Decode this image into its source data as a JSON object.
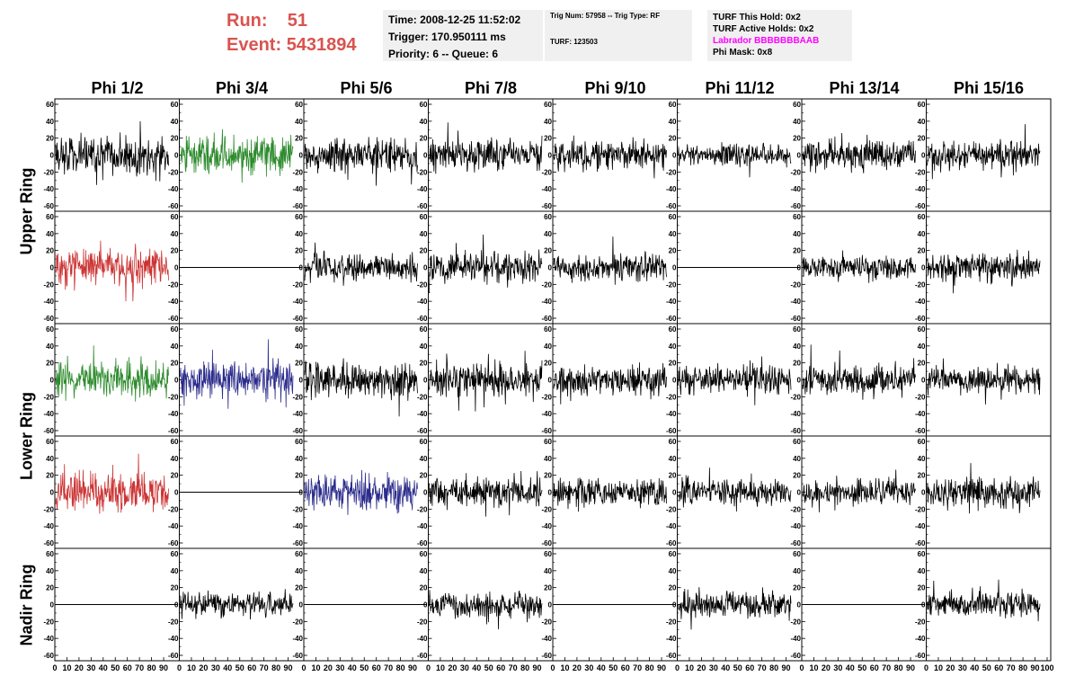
{
  "header": {
    "run_label": "Run:",
    "run_value": "51",
    "event_label": "Event:",
    "event_value": "5431894"
  },
  "info_box_1": {
    "time": "Time: 2008-12-25 11:52:02",
    "trigger": "Trigger: 170.950111 ms",
    "priority": "Priority: 6 -- Queue: 6"
  },
  "info_box_2": {
    "trig": "Trig Num: 57958 -- Trig Type: RF",
    "turf": "TURF: 123503"
  },
  "info_box_3": {
    "this_hold": "TURF This Hold: 0x2",
    "active_holds": "TURF Active Holds: 0x2",
    "labrador": "Labrador BBBBBBBAAB",
    "phi_mask": "Phi Mask: 0x8"
  },
  "colors": {
    "red": "#cc3333",
    "green": "#2e8b2e",
    "blue": "#2b2b8c",
    "black": "#000000"
  },
  "chart_data": {
    "type": "line",
    "columns": [
      "Phi 1/2",
      "Phi 3/4",
      "Phi 5/6",
      "Phi 7/8",
      "Phi 9/10",
      "Phi 11/12",
      "Phi 13/14",
      "Phi 15/16"
    ],
    "ring_labels": [
      {
        "label": "Upper Ring",
        "rows": [
          0,
          1
        ]
      },
      {
        "label": "Lower Ring",
        "rows": [
          2,
          3
        ]
      },
      {
        "label": "Nadir Ring",
        "rows": [
          4
        ]
      }
    ],
    "ylim": [
      -60,
      60
    ],
    "yticks": [
      "60",
      "40",
      "20",
      "0",
      "-20",
      "-40",
      "-60"
    ],
    "xlim": [
      0,
      100
    ],
    "xticks": [
      "0",
      "10",
      "20",
      "30",
      "40",
      "50",
      "60",
      "70",
      "80",
      "90",
      "100"
    ],
    "panels": [
      [
        {
          "color": "black",
          "flat": false,
          "amp": 22
        },
        {
          "color": "green",
          "flat": false,
          "amp": 24
        },
        {
          "color": "black",
          "flat": false,
          "amp": 20
        },
        {
          "color": "black",
          "flat": false,
          "amp": 18
        },
        {
          "color": "black",
          "flat": false,
          "amp": 18
        },
        {
          "color": "black",
          "flat": false,
          "amp": 14
        },
        {
          "color": "black",
          "flat": false,
          "amp": 17
        },
        {
          "color": "black",
          "flat": false,
          "amp": 17
        }
      ],
      [
        {
          "color": "red",
          "flat": false,
          "amp": 24
        },
        {
          "color": "black",
          "flat": true,
          "amp": 0
        },
        {
          "color": "black",
          "flat": false,
          "amp": 17
        },
        {
          "color": "black",
          "flat": false,
          "amp": 19
        },
        {
          "color": "black",
          "flat": false,
          "amp": 17
        },
        {
          "color": "black",
          "flat": true,
          "amp": 0
        },
        {
          "color": "black",
          "flat": false,
          "amp": 15
        },
        {
          "color": "black",
          "flat": false,
          "amp": 18
        }
      ],
      [
        {
          "color": "green",
          "flat": false,
          "amp": 22
        },
        {
          "color": "blue",
          "flat": false,
          "amp": 22
        },
        {
          "color": "black",
          "flat": false,
          "amp": 22
        },
        {
          "color": "black",
          "flat": false,
          "amp": 20
        },
        {
          "color": "black",
          "flat": false,
          "amp": 18
        },
        {
          "color": "black",
          "flat": false,
          "amp": 16
        },
        {
          "color": "black",
          "flat": false,
          "amp": 17
        },
        {
          "color": "black",
          "flat": false,
          "amp": 17
        }
      ],
      [
        {
          "color": "red",
          "flat": false,
          "amp": 24
        },
        {
          "color": "black",
          "flat": true,
          "amp": 0
        },
        {
          "color": "blue",
          "flat": false,
          "amp": 24
        },
        {
          "color": "black",
          "flat": false,
          "amp": 18
        },
        {
          "color": "black",
          "flat": false,
          "amp": 17
        },
        {
          "color": "black",
          "flat": false,
          "amp": 16
        },
        {
          "color": "black",
          "flat": false,
          "amp": 15
        },
        {
          "color": "black",
          "flat": false,
          "amp": 19
        }
      ],
      [
        {
          "color": "black",
          "flat": true,
          "amp": 0
        },
        {
          "color": "black",
          "flat": false,
          "amp": 15
        },
        {
          "color": "black",
          "flat": true,
          "amp": 0
        },
        {
          "color": "black",
          "flat": false,
          "amp": 15
        },
        {
          "color": "black",
          "flat": true,
          "amp": 0
        },
        {
          "color": "black",
          "flat": false,
          "amp": 16
        },
        {
          "color": "black",
          "flat": true,
          "amp": 0
        },
        {
          "color": "black",
          "flat": false,
          "amp": 16
        }
      ]
    ]
  }
}
